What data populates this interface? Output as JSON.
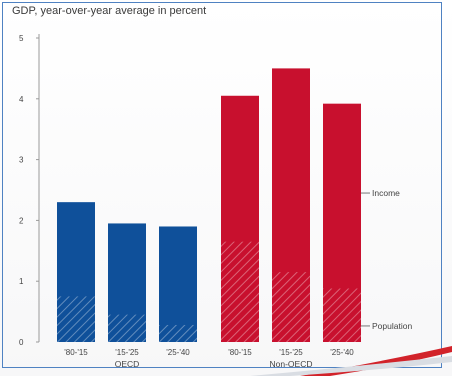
{
  "chart_data": {
    "type": "bar",
    "title": "GDP, year-over-year average in percent",
    "ylim": [
      0,
      5
    ],
    "yticks": [
      0,
      1,
      2,
      3,
      4,
      5
    ],
    "grid": false,
    "groups": [
      {
        "name": "OECD",
        "color": "#0f509a",
        "categories": [
          "'80-'15",
          "'15-'25",
          "'25-'40"
        ],
        "total": [
          2.3,
          1.95,
          1.9
        ],
        "population": [
          0.75,
          0.45,
          0.28
        ]
      },
      {
        "name": "Non-OECD",
        "color": "#c8102e",
        "categories": [
          "'80-'15",
          "'15-'25",
          "'25-'40"
        ],
        "total": [
          4.05,
          4.5,
          3.92
        ],
        "population": [
          1.65,
          1.15,
          0.88
        ]
      }
    ],
    "annotations": {
      "income": "Income",
      "population": "Population"
    }
  }
}
